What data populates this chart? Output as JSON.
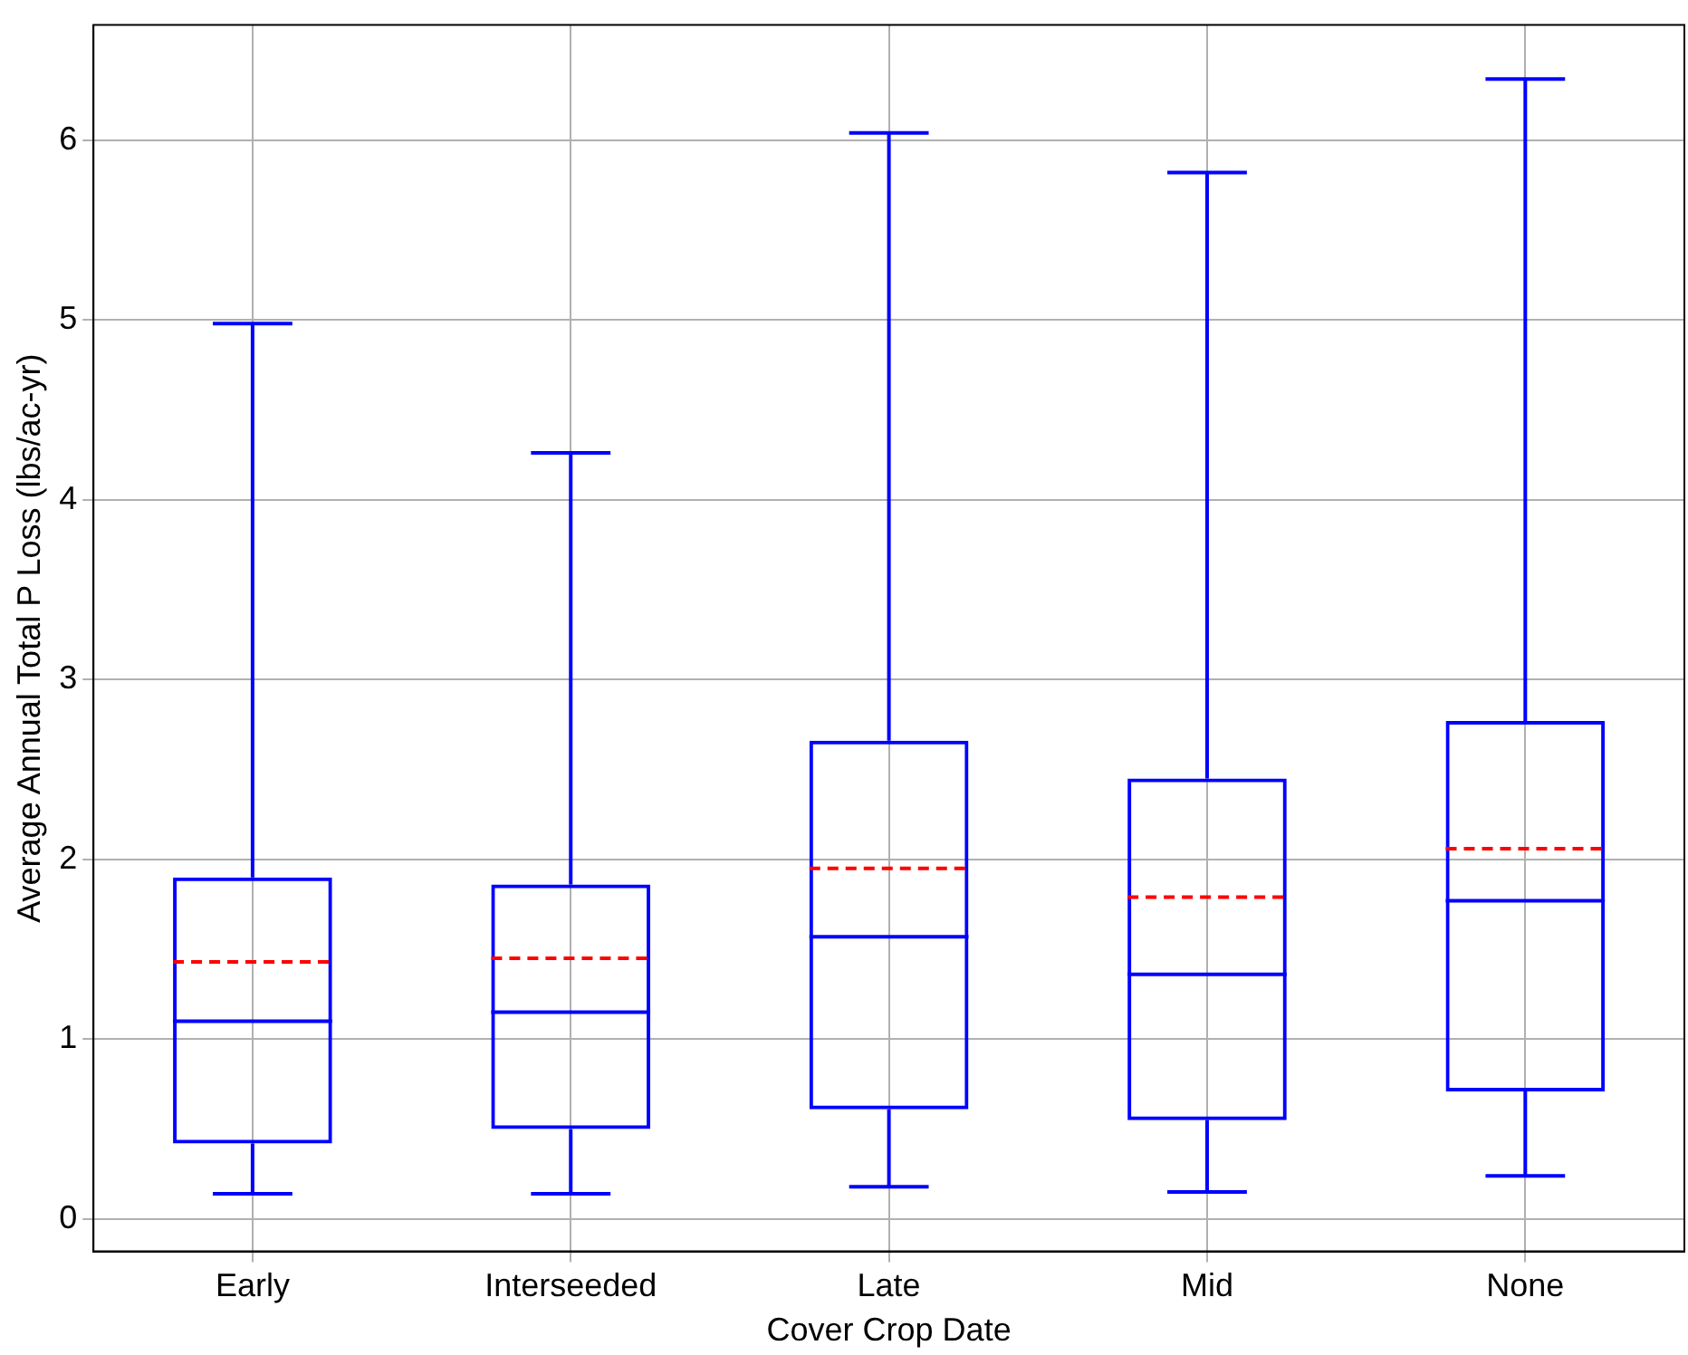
{
  "chart_data": {
    "type": "box",
    "xlabel": "Cover Crop Date",
    "ylabel": "Average Annual Total P Loss (lbs/ac-yr)",
    "categories": [
      "Early",
      "Interseeded",
      "Late",
      "Mid",
      "None"
    ],
    "series": [
      {
        "color": "#0000ff",
        "boxes": [
          {
            "low": 0.14,
            "q1": 0.42,
            "median": 1.1,
            "q3": 1.9,
            "high": 4.98,
            "mean": 1.43
          },
          {
            "low": 0.14,
            "q1": 0.5,
            "median": 1.15,
            "q3": 1.86,
            "high": 4.26,
            "mean": 1.45
          },
          {
            "low": 0.18,
            "q1": 0.61,
            "median": 1.57,
            "q3": 2.66,
            "high": 6.04,
            "mean": 1.95
          },
          {
            "low": 0.15,
            "q1": 0.55,
            "median": 1.36,
            "q3": 2.45,
            "high": 5.82,
            "mean": 1.79
          },
          {
            "low": 0.24,
            "q1": 0.71,
            "median": 1.77,
            "q3": 2.77,
            "high": 6.34,
            "mean": 2.06
          }
        ]
      }
    ],
    "ylim": [
      -0.18,
      6.64
    ],
    "yticks": [
      0,
      1,
      2,
      3,
      4,
      5,
      6
    ],
    "grid": true
  }
}
